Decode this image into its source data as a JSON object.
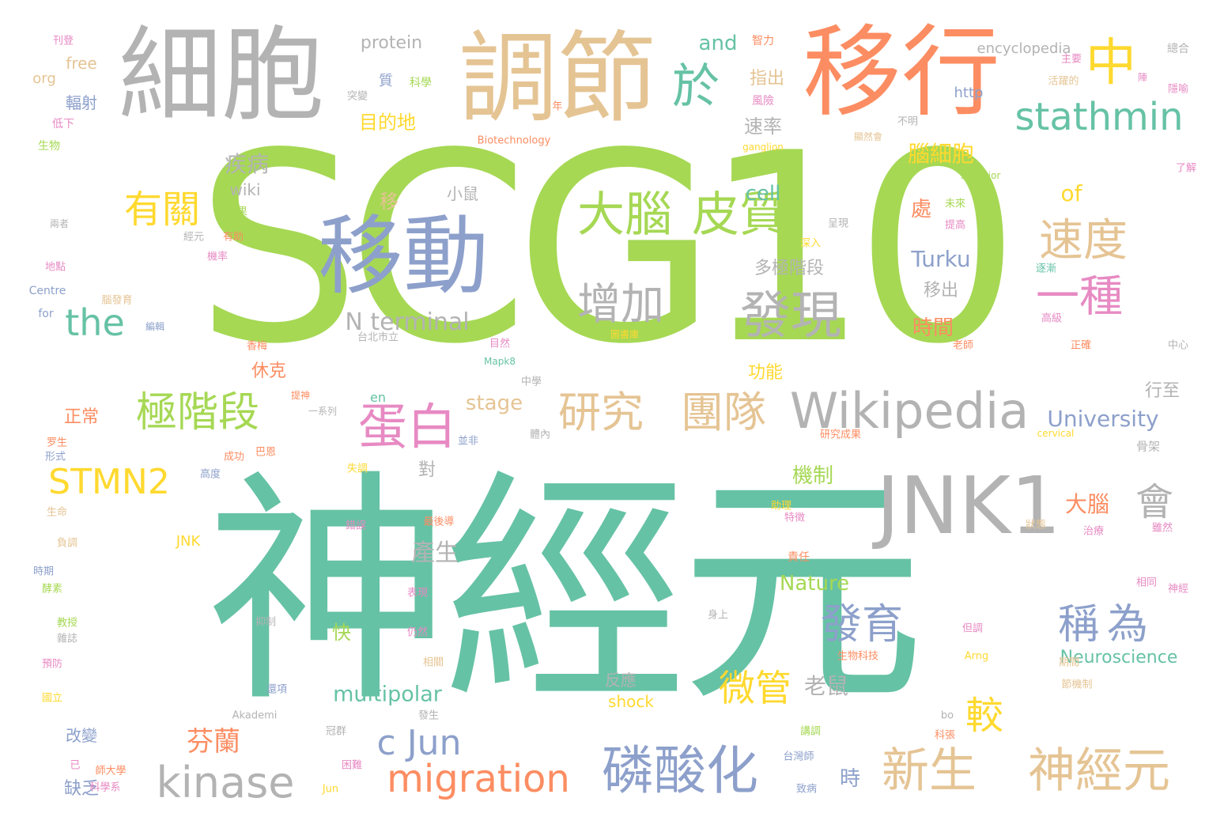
{
  "colors": {
    "green": "#a6d854",
    "teal": "#66c2a5",
    "orange": "#fc8d62",
    "blue": "#8da0cb",
    "pink": "#e78ac3",
    "yellow": "#ffd92f",
    "tan": "#e5c494",
    "gray": "#b3b3b3"
  },
  "words": [
    {
      "text": "SCG10",
      "color": "green"
    },
    {
      "text": "神經元",
      "color": "teal"
    },
    {
      "text": "細胞",
      "color": "gray"
    },
    {
      "text": "調節",
      "color": "tan"
    },
    {
      "text": "移行",
      "color": "orange"
    },
    {
      "text": "中",
      "color": "yellow"
    },
    {
      "text": "於",
      "color": "teal"
    },
    {
      "text": "移動",
      "color": "blue"
    },
    {
      "text": "stathmin",
      "color": "teal"
    },
    {
      "text": "JNK1",
      "color": "gray"
    },
    {
      "text": "Wikipedia",
      "color": "gray"
    },
    {
      "text": "大腦",
      "color": "green"
    },
    {
      "text": "皮質",
      "color": "green"
    },
    {
      "text": "發現",
      "color": "gray"
    },
    {
      "text": "增加",
      "color": "gray"
    },
    {
      "text": "速度",
      "color": "tan"
    },
    {
      "text": "一種",
      "color": "pink"
    },
    {
      "text": "有關",
      "color": "yellow"
    },
    {
      "text": "the",
      "color": "teal"
    },
    {
      "text": "極階段",
      "color": "green"
    },
    {
      "text": "蛋白",
      "color": "pink"
    },
    {
      "text": "研究",
      "color": "tan"
    },
    {
      "text": "團隊",
      "color": "tan"
    },
    {
      "text": "STMN2",
      "color": "yellow"
    },
    {
      "text": "發育",
      "color": "blue"
    },
    {
      "text": "稱為",
      "color": "blue"
    },
    {
      "text": "會",
      "color": "gray"
    },
    {
      "text": "微管",
      "color": "yellow"
    },
    {
      "text": "較",
      "color": "yellow"
    },
    {
      "text": "c Jun",
      "color": "blue"
    },
    {
      "text": "kinase",
      "color": "gray"
    },
    {
      "text": "migration",
      "color": "orange"
    },
    {
      "text": "磷酸化",
      "color": "blue"
    },
    {
      "text": "新生",
      "color": "tan"
    },
    {
      "text": "神經元",
      "color": "tan"
    },
    {
      "text": "芬蘭",
      "color": "orange"
    },
    {
      "text": "N terminal",
      "color": "gray"
    },
    {
      "text": "腦細胞",
      "color": "yellow"
    },
    {
      "text": "Turku",
      "color": "blue"
    },
    {
      "text": "University",
      "color": "blue"
    },
    {
      "text": "multipolar",
      "color": "teal"
    },
    {
      "text": "Nature",
      "color": "green"
    },
    {
      "text": "Neuroscience",
      "color": "teal"
    },
    {
      "text": "cell",
      "color": "teal"
    },
    {
      "text": "of",
      "color": "yellow"
    },
    {
      "text": "and",
      "color": "teal"
    },
    {
      "text": "速率",
      "color": "gray"
    },
    {
      "text": "處",
      "color": "orange"
    },
    {
      "text": "時間",
      "color": "orange"
    },
    {
      "text": "大腦",
      "color": "orange"
    },
    {
      "text": "機制",
      "color": "green"
    },
    {
      "text": "產生",
      "color": "gray"
    },
    {
      "text": "疾病",
      "color": "gray"
    },
    {
      "text": "目的地",
      "color": "yellow"
    },
    {
      "text": "指出",
      "color": "tan"
    },
    {
      "text": "stage",
      "color": "tan"
    },
    {
      "text": "老鼠",
      "color": "gray"
    },
    {
      "text": "protein",
      "color": "gray"
    },
    {
      "text": "encyclopedia",
      "color": "gray"
    },
    {
      "text": "free",
      "color": "tan"
    },
    {
      "text": "org",
      "color": "tan"
    },
    {
      "text": "輻射",
      "color": "blue"
    },
    {
      "text": "wiki",
      "color": "gray"
    },
    {
      "text": "小鼠",
      "color": "gray"
    },
    {
      "text": "移出",
      "color": "gray"
    },
    {
      "text": "多極階段",
      "color": "gray"
    },
    {
      "text": "休克",
      "color": "orange"
    },
    {
      "text": "功能",
      "color": "yellow"
    },
    {
      "text": "正常",
      "color": "orange"
    },
    {
      "text": "行至",
      "color": "gray"
    },
    {
      "text": "反應",
      "color": "gray"
    },
    {
      "text": "shock",
      "color": "yellow"
    },
    {
      "text": "快",
      "color": "green"
    },
    {
      "text": "對",
      "color": "gray"
    },
    {
      "text": "缺乏",
      "color": "blue"
    },
    {
      "text": "改變",
      "color": "blue"
    },
    {
      "text": "時",
      "color": "blue"
    },
    {
      "text": "移",
      "color": "tan"
    },
    {
      "text": "Biotechnology",
      "color": "orange"
    },
    {
      "text": "ganglion",
      "color": "yellow"
    },
    {
      "text": "Superior",
      "color": "green"
    },
    {
      "text": "http",
      "color": "blue"
    },
    {
      "text": "JNK",
      "color": "yellow"
    },
    {
      "text": "Centre",
      "color": "blue"
    },
    {
      "text": "for",
      "color": "blue"
    },
    {
      "text": "Mapk8",
      "color": "teal"
    },
    {
      "text": "Akademi",
      "color": "gray"
    },
    {
      "text": "Jun",
      "color": "yellow"
    },
    {
      "text": "bo",
      "color": "gray"
    },
    {
      "text": "Arng",
      "color": "yellow"
    },
    {
      "text": "en",
      "color": "teal"
    },
    {
      "text": "cervical",
      "color": "yellow"
    },
    {
      "text": "刊登",
      "color": "pink"
    },
    {
      "text": "生物",
      "color": "green"
    },
    {
      "text": "低下",
      "color": "pink"
    },
    {
      "text": "智力",
      "color": "orange"
    },
    {
      "text": "總合",
      "color": "gray"
    },
    {
      "text": "主要",
      "color": "pink"
    },
    {
      "text": "活躍的",
      "color": "tan"
    },
    {
      "text": "陣",
      "color": "pink"
    },
    {
      "text": "隱喻",
      "color": "pink"
    },
    {
      "text": "科學",
      "color": "green"
    },
    {
      "text": "突變",
      "color": "gray"
    },
    {
      "text": "質",
      "color": "blue"
    },
    {
      "text": "風險",
      "color": "pink"
    },
    {
      "text": "不明",
      "color": "gray"
    },
    {
      "text": "顯然會",
      "color": "tan"
    },
    {
      "text": "結果",
      "color": "green"
    },
    {
      "text": "兩者",
      "color": "gray"
    },
    {
      "text": "經元",
      "color": "gray"
    },
    {
      "text": "有助",
      "color": "orange"
    },
    {
      "text": "機率",
      "color": "pink"
    },
    {
      "text": "地點",
      "color": "pink"
    },
    {
      "text": "腦發育",
      "color": "tan"
    },
    {
      "text": "編輯",
      "color": "blue"
    },
    {
      "text": "香梅",
      "color": "orange"
    },
    {
      "text": "台北市立",
      "color": "gray"
    },
    {
      "text": "圖書庫",
      "color": "yellow"
    },
    {
      "text": "目然",
      "color": "pink"
    },
    {
      "text": "中學",
      "color": "gray"
    },
    {
      "text": "老師",
      "color": "orange"
    },
    {
      "text": "中心",
      "color": "gray"
    },
    {
      "text": "正確",
      "color": "orange"
    },
    {
      "text": "高級",
      "color": "pink"
    },
    {
      "text": "逐漸",
      "color": "teal"
    },
    {
      "text": "提高",
      "color": "pink"
    },
    {
      "text": "未來",
      "color": "green"
    },
    {
      "text": "呈現",
      "color": "gray"
    },
    {
      "text": "深入",
      "color": "yellow"
    },
    {
      "text": "了解",
      "color": "pink"
    },
    {
      "text": "提神",
      "color": "orange"
    },
    {
      "text": "一系列",
      "color": "gray"
    },
    {
      "text": "並非",
      "color": "blue"
    },
    {
      "text": "研究成果",
      "color": "orange"
    },
    {
      "text": "骨架",
      "color": "gray"
    },
    {
      "text": "成功",
      "color": "orange"
    },
    {
      "text": "高度",
      "color": "blue"
    },
    {
      "text": "失調",
      "color": "yellow"
    },
    {
      "text": "生命",
      "color": "tan"
    },
    {
      "text": "負調",
      "color": "tan"
    },
    {
      "text": "時期",
      "color": "blue"
    },
    {
      "text": "酵素",
      "color": "green"
    },
    {
      "text": "教授",
      "color": "green"
    },
    {
      "text": "雜誌",
      "color": "gray"
    },
    {
      "text": "預防",
      "color": "pink"
    },
    {
      "text": "國立",
      "color": "yellow"
    },
    {
      "text": "已",
      "color": "pink"
    },
    {
      "text": "師大學",
      "color": "orange"
    },
    {
      "text": "科學系",
      "color": "pink"
    },
    {
      "text": "錯誤",
      "color": "pink"
    },
    {
      "text": "最後導",
      "color": "orange"
    },
    {
      "text": "體內",
      "color": "gray"
    },
    {
      "text": "身上",
      "color": "gray"
    },
    {
      "text": "表現",
      "color": "pink"
    },
    {
      "text": "抑制",
      "color": "gray"
    },
    {
      "text": "仍然",
      "color": "pink"
    },
    {
      "text": "相關",
      "color": "tan"
    },
    {
      "text": "生物科技",
      "color": "orange"
    },
    {
      "text": "還項",
      "color": "blue"
    },
    {
      "text": "發生",
      "color": "gray"
    },
    {
      "text": "冠群",
      "color": "gray"
    },
    {
      "text": "困難",
      "color": "pink"
    },
    {
      "text": "台灣師",
      "color": "blue"
    },
    {
      "text": "致病",
      "color": "blue"
    },
    {
      "text": "科張",
      "color": "orange"
    },
    {
      "text": "講調",
      "color": "green"
    },
    {
      "text": "期間",
      "color": "tan"
    },
    {
      "text": "節機制",
      "color": "tan"
    },
    {
      "text": "治療",
      "color": "pink"
    },
    {
      "text": "雖然",
      "color": "pink"
    },
    {
      "text": "相同",
      "color": "pink"
    },
    {
      "text": "神經",
      "color": "pink"
    },
    {
      "text": "特徵",
      "color": "pink"
    },
    {
      "text": "助理",
      "color": "yellow"
    },
    {
      "text": "責任",
      "color": "orange"
    },
    {
      "text": "狀態",
      "color": "tan"
    },
    {
      "text": "但調",
      "color": "pink"
    },
    {
      "text": "年",
      "color": "orange"
    },
    {
      "text": "巴恩",
      "color": "orange"
    },
    {
      "text": "形式",
      "color": "blue"
    },
    {
      "text": "罗生",
      "color": "orange"
    }
  ]
}
